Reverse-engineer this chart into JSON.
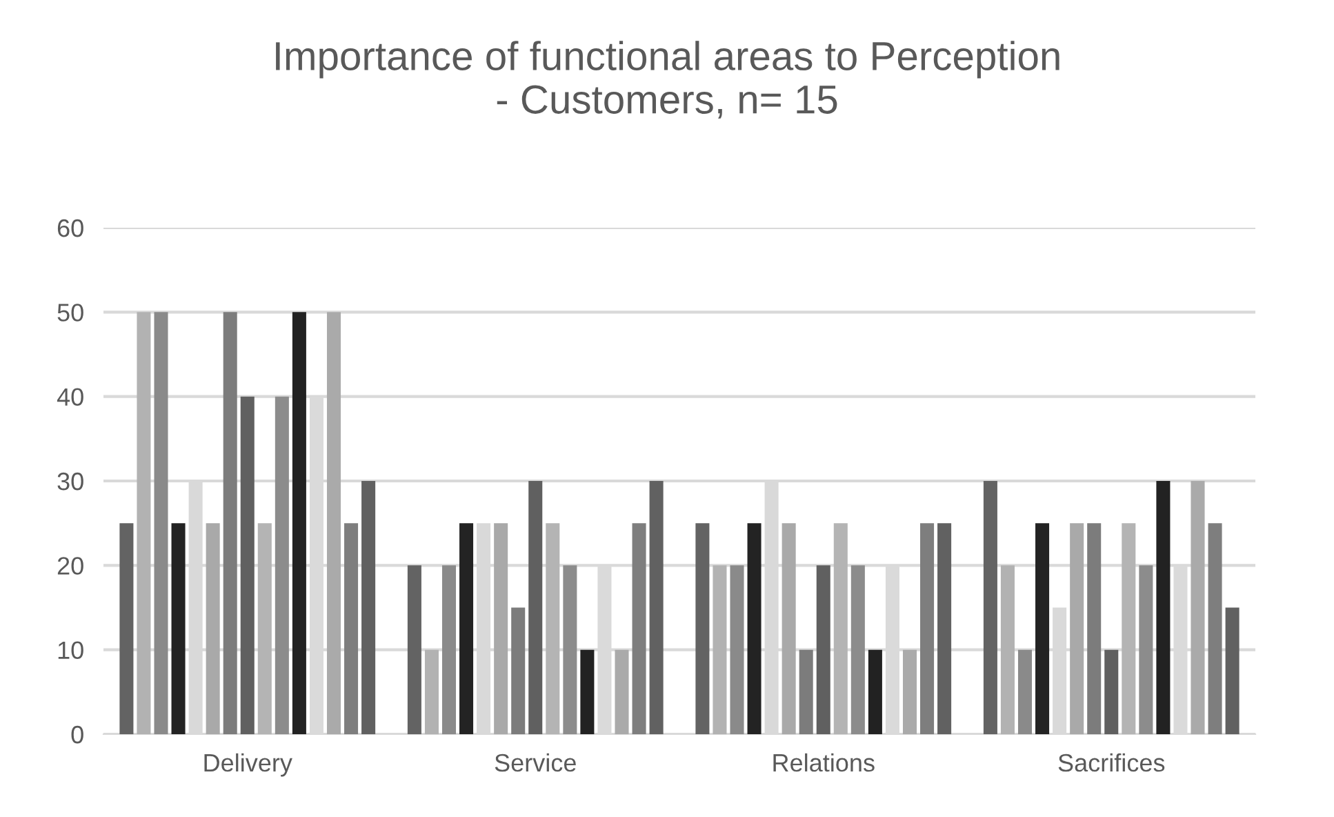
{
  "chart_data": {
    "type": "bar",
    "title": "Importance of functional areas to Perception\n- Customers, n= 15",
    "categories": [
      "Delivery",
      "Service",
      "Relations",
      "Sacrifices"
    ],
    "series": [
      {
        "color": "#636363",
        "values": [
          25,
          20,
          25,
          30
        ]
      },
      {
        "color": "#b2b2b2",
        "values": [
          50,
          10,
          20,
          20
        ]
      },
      {
        "color": "#8a8a8a",
        "values": [
          50,
          20,
          20,
          10
        ]
      },
      {
        "color": "#232323",
        "values": [
          25,
          25,
          25,
          25
        ]
      },
      {
        "color": "#d9d9d9",
        "values": [
          30,
          25,
          30,
          15
        ]
      },
      {
        "color": "#a9a9a9",
        "values": [
          25,
          25,
          25,
          25
        ]
      },
      {
        "color": "#7c7c7c",
        "values": [
          50,
          15,
          10,
          25
        ]
      },
      {
        "color": "#606060",
        "values": [
          40,
          30,
          20,
          10
        ]
      },
      {
        "color": "#b4b4b4",
        "values": [
          25,
          25,
          25,
          25
        ]
      },
      {
        "color": "#8c8c8c",
        "values": [
          40,
          20,
          20,
          20
        ]
      },
      {
        "color": "#222222",
        "values": [
          50,
          10,
          10,
          30
        ]
      },
      {
        "color": "#dadada",
        "values": [
          40,
          20,
          20,
          20
        ]
      },
      {
        "color": "#aaaaaa",
        "values": [
          50,
          10,
          10,
          30
        ]
      },
      {
        "color": "#7e7e7e",
        "values": [
          25,
          25,
          25,
          25
        ]
      },
      {
        "color": "#616161",
        "values": [
          30,
          30,
          25,
          15
        ]
      }
    ],
    "ylim": [
      0,
      60
    ],
    "yticks": [
      0,
      10,
      20,
      30,
      40,
      50,
      60
    ],
    "grid": "y",
    "legend": false
  }
}
